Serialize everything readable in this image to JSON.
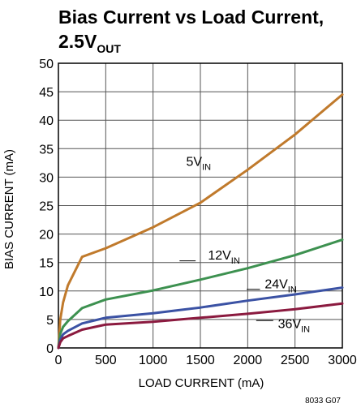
{
  "chart_data": {
    "type": "line",
    "title": "Bias Current vs Load Current,",
    "title_line2_main": "2.5V",
    "title_line2_sub": "OUT",
    "xlabel": "LOAD CURRENT (mA)",
    "ylabel": "BIAS CURRENT (mA)",
    "xlim": [
      0,
      3000
    ],
    "ylim": [
      0,
      50
    ],
    "x_ticks": [
      0,
      500,
      1000,
      1500,
      2000,
      2500,
      3000
    ],
    "y_ticks": [
      0,
      5,
      10,
      15,
      20,
      25,
      30,
      35,
      40,
      45,
      50
    ],
    "grid": true,
    "figure_note": "8033 G07",
    "series": [
      {
        "name_main": "5V",
        "name_sub": "IN",
        "color": "#c07a2c",
        "x": [
          0,
          20,
          50,
          100,
          250,
          500,
          1000,
          1500,
          2000,
          2500,
          3000
        ],
        "y": [
          0,
          5,
          8,
          11,
          16,
          17.5,
          21.2,
          25.5,
          31.3,
          37.5,
          44.5
        ]
      },
      {
        "name_main": "12V",
        "name_sub": "IN",
        "color": "#3d9150",
        "x": [
          0,
          20,
          50,
          100,
          250,
          500,
          1000,
          1500,
          2000,
          2500,
          3000
        ],
        "y": [
          0,
          2.5,
          3.7,
          4.7,
          7,
          8.5,
          10.1,
          12,
          14,
          16.3,
          19
        ]
      },
      {
        "name_main": "24V",
        "name_sub": "IN",
        "color": "#3b52a4",
        "x": [
          0,
          20,
          50,
          100,
          250,
          500,
          1000,
          1500,
          2000,
          2500,
          3000
        ],
        "y": [
          0,
          1.5,
          2.4,
          3,
          4.3,
          5.3,
          6.1,
          7.1,
          8.3,
          9.4,
          10.6
        ]
      },
      {
        "name_main": "36V",
        "name_sub": "IN",
        "color": "#8b1a3f",
        "x": [
          0,
          20,
          50,
          100,
          250,
          500,
          1000,
          1500,
          2000,
          2500,
          3000
        ],
        "y": [
          0,
          1,
          1.7,
          2.1,
          3.2,
          4.1,
          4.6,
          5.3,
          6,
          6.8,
          7.8
        ]
      }
    ]
  }
}
